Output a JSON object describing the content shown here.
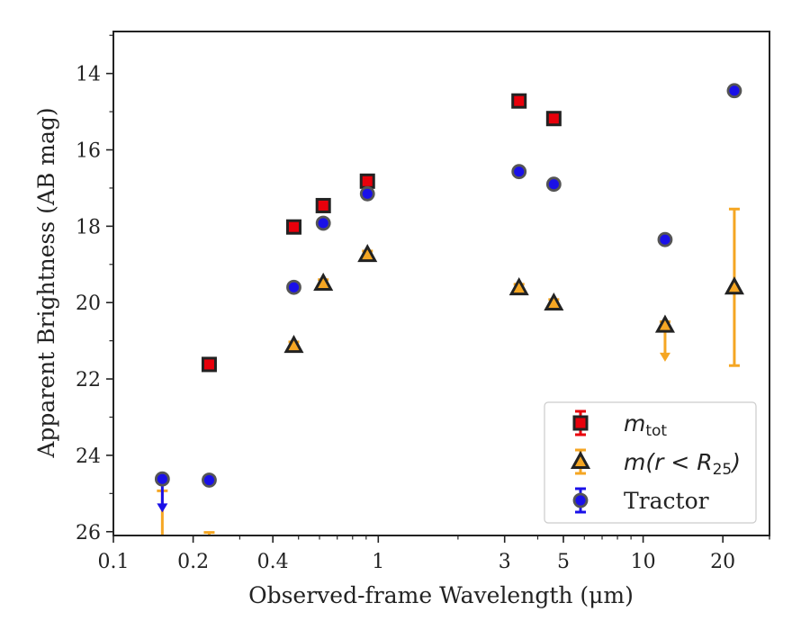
{
  "chart_data": {
    "type": "scatter",
    "title": "",
    "xlabel": "Observed-frame Wavelength (μm)",
    "ylabel": "Apparent Brightness (AB mag)",
    "x_scale": "log",
    "xlim": [
      0.1,
      30
    ],
    "ylim": [
      26.1,
      12.9
    ],
    "y_inverted": true,
    "x_ticks": [
      0.1,
      0.2,
      0.4,
      1,
      3,
      5,
      10,
      20
    ],
    "x_tick_labels": [
      "0.1",
      "0.2",
      "0.4",
      "1",
      "3",
      "5",
      "10",
      "20"
    ],
    "y_ticks": [
      14,
      16,
      18,
      20,
      22,
      24,
      26
    ],
    "y_tick_labels": [
      "14",
      "16",
      "18",
      "20",
      "22",
      "24",
      "26"
    ],
    "grid": false,
    "legend_position": "bottom-right",
    "series": [
      {
        "name": "m_tot",
        "label_main": "m",
        "label_sub": "tot",
        "marker": "square",
        "fill": "#e8000b",
        "edge": "#222222",
        "errcolor": "#e8000b",
        "points": [
          {
            "x": 0.23,
            "y": 21.62,
            "err": 0.1
          },
          {
            "x": 0.48,
            "y": 18.02,
            "err": 0.1
          },
          {
            "x": 0.62,
            "y": 17.46,
            "err": 0.1
          },
          {
            "x": 0.91,
            "y": 16.82,
            "err": 0.1
          },
          {
            "x": 3.4,
            "y": 14.72,
            "err": 0.1
          },
          {
            "x": 4.6,
            "y": 15.18,
            "err": 0.1
          }
        ]
      },
      {
        "name": "m(r < R25)",
        "label_main": "m(r < R",
        "label_sub": "25",
        "label_tail": ")",
        "marker": "triangle",
        "fill": "#f5a623",
        "edge": "#222222",
        "errcolor": "#f5a623",
        "points": [
          {
            "x": 0.48,
            "y": 21.13,
            "err": 0.1
          },
          {
            "x": 0.62,
            "y": 19.5,
            "err": 0.1
          },
          {
            "x": 0.91,
            "y": 18.75,
            "err": 0.1
          },
          {
            "x": 3.4,
            "y": 19.62,
            "err": 0.1
          },
          {
            "x": 4.6,
            "y": 20.02,
            "err": 0.1
          },
          {
            "x": 12.1,
            "y": 20.6,
            "err": 0.1,
            "upper_limit": 21.5
          },
          {
            "x": 22.1,
            "y": 19.6,
            "err_low": 2.05,
            "err_high": 2.05
          }
        ]
      },
      {
        "name": "Tractor",
        "label_main": "Tractor",
        "marker": "circle",
        "fill": "#1a10e8",
        "edge": "#555555",
        "errcolor": "#1a10e8",
        "points": [
          {
            "x": 0.153,
            "y": 24.62,
            "err": 0.05,
            "upper_limit": 25.45
          },
          {
            "x": 0.23,
            "y": 24.65,
            "err": 0.05
          },
          {
            "x": 0.48,
            "y": 19.6,
            "err": 0.05
          },
          {
            "x": 0.62,
            "y": 17.92,
            "err": 0.05
          },
          {
            "x": 0.91,
            "y": 17.15,
            "err": 0.05
          },
          {
            "x": 3.4,
            "y": 16.57,
            "err": 0.05
          },
          {
            "x": 4.6,
            "y": 16.9,
            "err": 0.05
          },
          {
            "x": 12.1,
            "y": 18.35,
            "err": 0.05
          },
          {
            "x": 22.1,
            "y": 14.45,
            "err": 0.05
          }
        ]
      }
    ],
    "extra_errorbars": [
      {
        "x": 0.153,
        "y_top": 24.93,
        "y_bottom": 26.1,
        "color": "#f5a623",
        "cap_top": true
      },
      {
        "x": 0.23,
        "y_top": 26.02,
        "y_bottom": 26.1,
        "color": "#f5a623",
        "cap_top": true
      }
    ]
  }
}
